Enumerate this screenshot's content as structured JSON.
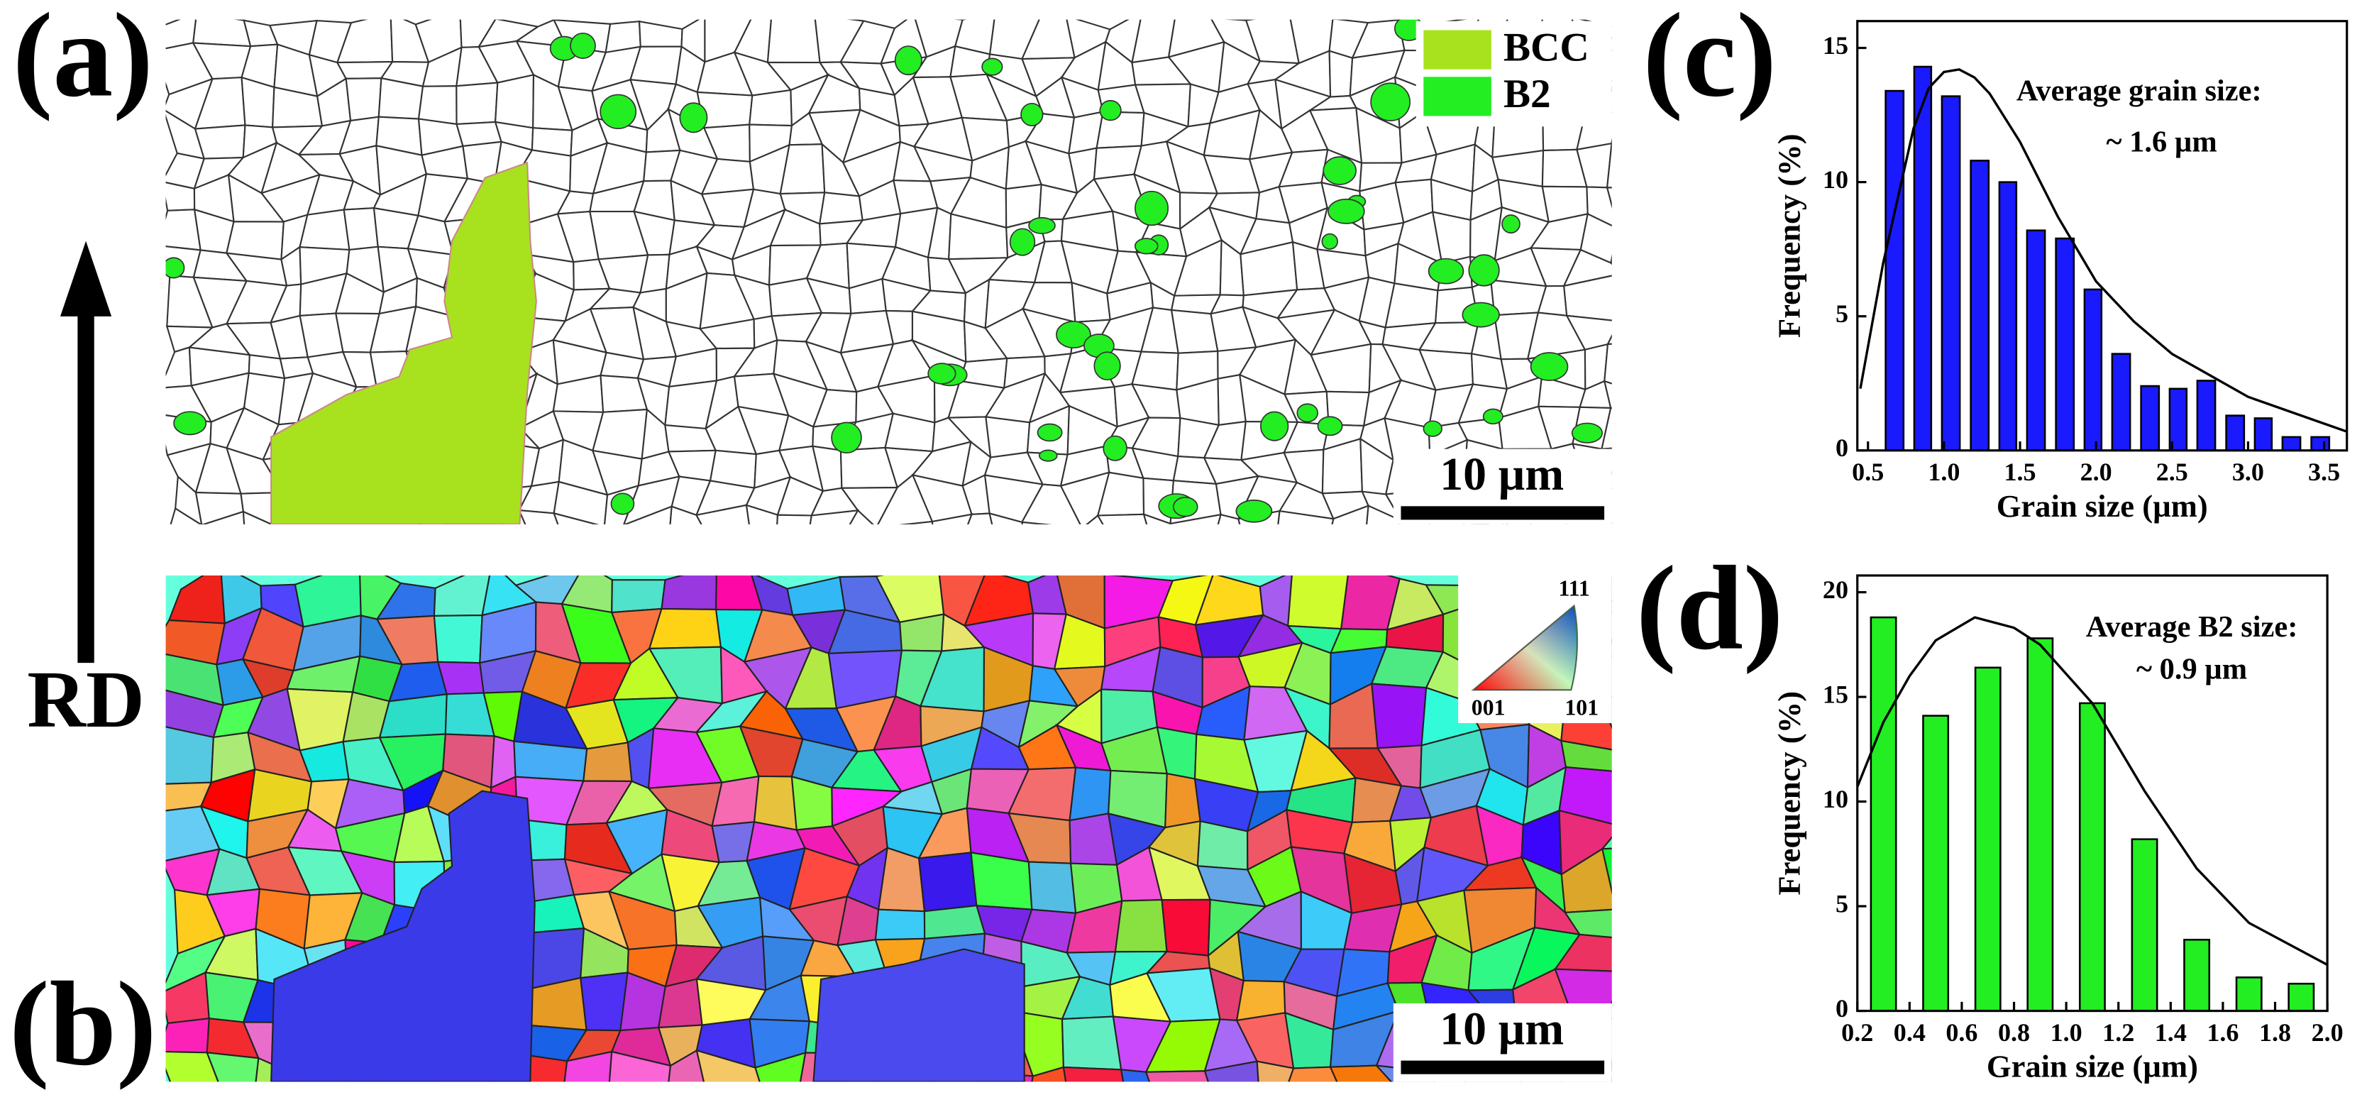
{
  "figure": {
    "panel_labels": [
      "(a)",
      "(b)",
      "(c)",
      "(d)"
    ],
    "phase_legend": [
      {
        "name": "BCC",
        "color": "#a8e21e"
      },
      {
        "name": "B2",
        "color": "#22ee22"
      }
    ],
    "scale_bars": [
      "10 µm",
      "10 µm"
    ],
    "direction": "RD",
    "ipf_legend": {
      "top": "111",
      "left": "001",
      "right": "101"
    }
  },
  "chart_data": [
    {
      "type": "histogram",
      "xlabel": "Grain size (µm)",
      "ylabel": "Frequency (%)",
      "annotations": [
        "Average grain size:",
        "~ 1.6 µm"
      ],
      "color": "#1a1aff",
      "bins": [
        0.58,
        0.77,
        0.95,
        1.14,
        1.33,
        1.51,
        1.7,
        1.89,
        2.07,
        2.26,
        2.45,
        2.63,
        2.82,
        3.01,
        3.19,
        3.38,
        3.57
      ],
      "values": [
        13.4,
        14.3,
        13.2,
        10.8,
        10.0,
        8.2,
        7.9,
        6.0,
        3.6,
        2.4,
        2.3,
        2.6,
        1.3,
        1.2,
        0.5,
        0.5
      ],
      "fit": {
        "x": [
          0.45,
          0.6,
          0.8,
          0.9,
          1.0,
          1.1,
          1.2,
          1.3,
          1.5,
          1.75,
          2.0,
          2.25,
          2.5,
          3.0,
          3.5,
          3.65
        ],
        "y": [
          2.3,
          7.0,
          12.0,
          13.5,
          14.1,
          14.2,
          13.9,
          13.3,
          11.5,
          8.7,
          6.3,
          4.8,
          3.6,
          2.0,
          1.0,
          0.7
        ]
      },
      "xlim": [
        0.43,
        3.65
      ],
      "ylim": [
        0,
        16
      ],
      "xticks": [
        0.5,
        {
          "value": 1,
          "label": "1.0"
        },
        1.5,
        {
          "value": 2,
          "label": "2.0"
        },
        2.5,
        {
          "value": 3,
          "label": "3.0"
        },
        3.5
      ],
      "yticks": [
        0,
        5,
        10,
        15
      ]
    },
    {
      "type": "histogram",
      "xlabel": "Grain size (µm)",
      "ylabel": "Frequency (%)",
      "annotations": [
        "Average B2 size:",
        "~ 0.9 µm"
      ],
      "color": "#22ee22",
      "bins": [
        0.2,
        0.4,
        0.6,
        0.8,
        1.0,
        1.2,
        1.4,
        1.6,
        1.8,
        2.0
      ],
      "values": [
        18.8,
        14.1,
        16.4,
        17.8,
        14.7,
        8.2,
        3.4,
        1.6,
        1.3
      ],
      "fit": {
        "x": [
          0.2,
          0.3,
          0.4,
          0.5,
          0.65,
          0.8,
          0.9,
          1.1,
          1.3,
          1.5,
          1.7,
          2.0
        ],
        "y": [
          10.7,
          13.8,
          16.0,
          17.7,
          18.8,
          18.3,
          17.5,
          14.7,
          10.5,
          6.8,
          4.2,
          2.2
        ]
      },
      "xlim": [
        0.2,
        2.0
      ],
      "ylim": [
        0,
        20.8
      ],
      "xticks": [
        0.2,
        0.4,
        0.6,
        0.8,
        {
          "value": 1,
          "label": "1.0"
        },
        1.2,
        1.4,
        1.6,
        1.8,
        {
          "value": 2,
          "label": "2.0"
        }
      ],
      "yticks": [
        0,
        5,
        10,
        15,
        20
      ]
    }
  ]
}
